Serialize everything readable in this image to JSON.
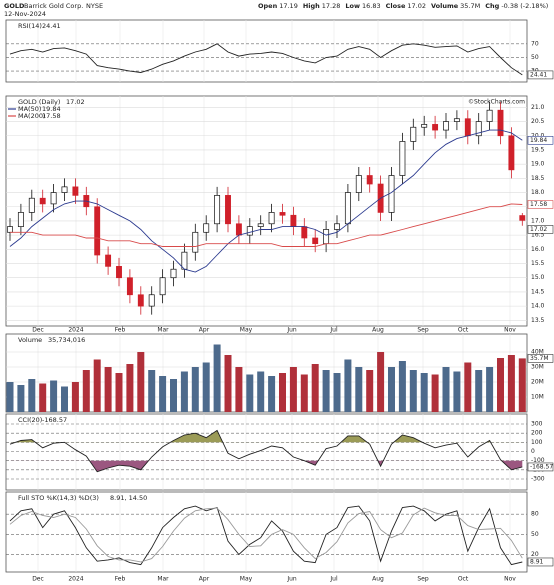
{
  "header": {
    "symbol": "GOLD",
    "name": "Barrick Gold Corp.",
    "exchange": "NYSE",
    "date": "12-Nov-2024",
    "quote": [
      {
        "label": "Open",
        "value": 17.19
      },
      {
        "label": "High",
        "value": 17.28
      },
      {
        "label": "Low",
        "value": 16.83
      },
      {
        "label": "Close",
        "value": 17.02
      },
      {
        "label": "Volume",
        "value": 35700000,
        "value_label": "35.7M"
      },
      {
        "label": "Chg",
        "value": -0.38,
        "value_label": "-0.38 (-2.18%)"
      }
    ]
  },
  "watermark": "©StockCharts.com",
  "months": [
    "Dec",
    "2024",
    "Feb",
    "Mar",
    "Apr",
    "May",
    "Jun",
    "Jul",
    "Aug",
    "Sep",
    "Oct",
    "Nov"
  ],
  "chart_data": [
    {
      "type": "line",
      "title": "RSI(14)",
      "ylim": [
        14,
        105
      ],
      "yticks": [
        30,
        50,
        70
      ],
      "series": [
        {
          "name": "RSI(14)",
          "color": "#222222",
          "values": [
            55,
            60,
            62,
            58,
            63,
            64,
            60,
            55,
            38,
            35,
            33,
            30,
            28,
            33,
            40,
            45,
            52,
            58,
            62,
            70,
            58,
            52,
            55,
            56,
            58,
            56,
            50,
            45,
            42,
            50,
            52,
            62,
            66,
            62,
            50,
            60,
            68,
            70,
            68,
            65,
            66,
            67,
            58,
            63,
            66,
            50,
            35,
            24.41
          ]
        }
      ]
    },
    {
      "type": "candlestick",
      "title": "GOLD (Daily)",
      "ylim": [
        13.3,
        21.4
      ],
      "grid": true,
      "up_color": "#111111",
      "down_color": "#d0202a",
      "yticks": [
        {
          "value": 13.5,
          "label": "13.5"
        },
        {
          "value": 14,
          "label": "14.0"
        },
        {
          "value": 14.5,
          "label": "14.5"
        },
        {
          "value": 15,
          "label": "15.0"
        },
        {
          "value": 15.5,
          "label": "15.5"
        },
        {
          "value": 16,
          "label": "16.0"
        },
        {
          "value": 16.5,
          "label": "16.5"
        },
        {
          "value": 17,
          "label": "17.0"
        },
        {
          "value": 17.5,
          "label": "17.5"
        },
        {
          "value": 18,
          "label": "18.0"
        },
        {
          "value": 18.5,
          "label": "18.5"
        },
        {
          "value": 19,
          "label": "19.0"
        },
        {
          "value": 19.5,
          "label": "19.5"
        },
        {
          "value": 20,
          "label": "20.0"
        },
        {
          "value": 20.5,
          "label": "20.5"
        },
        {
          "value": 21,
          "label": "21.0"
        }
      ],
      "open": [
        16.6,
        16.8,
        17.3,
        17.8,
        17.6,
        18.0,
        18.2,
        17.9,
        17.5,
        15.8,
        15.4,
        15.0,
        14.4,
        14.0,
        14.4,
        15.0,
        15.3,
        15.9,
        16.6,
        16.9,
        17.9,
        16.9,
        16.5,
        16.8,
        16.9,
        17.3,
        17.2,
        16.8,
        16.4,
        16.2,
        16.7,
        16.9,
        18.0,
        18.6,
        18.3,
        17.3,
        18.6,
        19.8,
        20.3,
        20.4,
        20.2,
        20.5,
        20.6,
        20.0,
        20.5,
        20.9,
        20.0,
        17.19
      ],
      "high": [
        17.1,
        17.6,
        18.1,
        18.1,
        18.3,
        18.5,
        18.5,
        18.2,
        17.8,
        16.1,
        15.7,
        15.3,
        14.7,
        14.7,
        15.3,
        15.6,
        16.2,
        16.9,
        17.2,
        18.2,
        18.2,
        17.2,
        17.1,
        17.2,
        17.6,
        17.6,
        17.5,
        17.1,
        16.7,
        17.0,
        17.2,
        18.3,
        18.9,
        18.9,
        18.6,
        18.9,
        20.1,
        20.6,
        20.7,
        20.7,
        20.8,
        20.9,
        20.9,
        20.8,
        21.2,
        21.2,
        20.3,
        17.28
      ],
      "low": [
        16.3,
        16.5,
        17.0,
        17.3,
        17.3,
        17.7,
        17.6,
        17.2,
        15.5,
        15.1,
        14.7,
        14.1,
        13.7,
        13.7,
        14.1,
        14.7,
        15.0,
        15.6,
        16.3,
        16.6,
        16.6,
        16.2,
        16.2,
        16.5,
        16.6,
        16.9,
        16.5,
        16.1,
        15.9,
        15.9,
        16.4,
        16.6,
        17.7,
        18.0,
        17.0,
        17.0,
        18.3,
        19.5,
        20.0,
        19.9,
        19.9,
        20.2,
        19.7,
        19.7,
        20.2,
        19.7,
        18.5,
        16.83
      ],
      "close": [
        16.8,
        17.3,
        17.8,
        17.6,
        18.0,
        18.2,
        17.9,
        17.5,
        15.8,
        15.4,
        15.0,
        14.4,
        14.0,
        14.4,
        15.0,
        15.3,
        15.9,
        16.6,
        16.9,
        17.9,
        16.9,
        16.5,
        16.8,
        16.9,
        17.3,
        17.2,
        16.8,
        16.4,
        16.2,
        16.7,
        16.9,
        18.0,
        18.6,
        18.3,
        17.3,
        18.6,
        19.8,
        20.3,
        20.4,
        20.2,
        20.5,
        20.6,
        20.0,
        20.5,
        20.9,
        20.0,
        18.8,
        17.02
      ],
      "series": [
        {
          "name": "MA(50)",
          "color": "#2b3a8f",
          "values": [
            16.1,
            16.4,
            16.8,
            17.1,
            17.4,
            17.6,
            17.7,
            17.7,
            17.6,
            17.4,
            17.2,
            17.0,
            16.7,
            16.3,
            16.0,
            15.7,
            15.3,
            15.2,
            15.4,
            15.8,
            16.2,
            16.5,
            16.6,
            16.7,
            16.7,
            16.8,
            16.8,
            16.8,
            16.7,
            16.5,
            16.6,
            16.9,
            17.2,
            17.5,
            17.8,
            18.0,
            18.3,
            18.6,
            19.0,
            19.4,
            19.7,
            19.9,
            20.0,
            20.1,
            20.2,
            20.2,
            20.1,
            19.84
          ]
        },
        {
          "name": "MA(200)",
          "color": "#d84a4a",
          "values": [
            16.6,
            16.6,
            16.6,
            16.5,
            16.5,
            16.5,
            16.5,
            16.4,
            16.4,
            16.3,
            16.3,
            16.3,
            16.2,
            16.2,
            16.1,
            16.1,
            16.1,
            16.1,
            16.2,
            16.2,
            16.2,
            16.2,
            16.2,
            16.2,
            16.2,
            16.1,
            16.1,
            16.1,
            16.1,
            16.2,
            16.2,
            16.3,
            16.4,
            16.5,
            16.5,
            16.6,
            16.7,
            16.8,
            16.9,
            17.0,
            17.1,
            17.2,
            17.3,
            17.4,
            17.5,
            17.5,
            17.6,
            17.58
          ]
        }
      ]
    },
    {
      "type": "bar",
      "title": "Volume",
      "last_label": "35,734,016",
      "ylim": [
        0,
        52000000
      ],
      "up_color": "#4d6a8c",
      "down_color": "#b0303a",
      "yticks": [
        {
          "value": 10000000,
          "label": "10M"
        },
        {
          "value": 20000000,
          "label": "20M"
        },
        {
          "value": 30000000,
          "label": "30M"
        },
        {
          "value": 40000000,
          "label": "40M"
        }
      ],
      "values": [
        20000000,
        18000000,
        22000000,
        19000000,
        21000000,
        17000000,
        20000000,
        28000000,
        35000000,
        30000000,
        26000000,
        32000000,
        40000000,
        28000000,
        24000000,
        22000000,
        27000000,
        30000000,
        33000000,
        45000000,
        38000000,
        30000000,
        25000000,
        27000000,
        24000000,
        26000000,
        30000000,
        25000000,
        32000000,
        28000000,
        26000000,
        35000000,
        30000000,
        28000000,
        40000000,
        30000000,
        34000000,
        28000000,
        26000000,
        25000000,
        30000000,
        27000000,
        33000000,
        28000000,
        30000000,
        36000000,
        38000000,
        35734016
      ]
    },
    {
      "type": "line",
      "title": "CCI(20)",
      "ylim": [
        -420,
        409
      ],
      "yticks": [
        -300,
        -200,
        -100,
        0,
        100,
        200,
        300
      ],
      "band": [
        -100,
        100
      ],
      "fill_up": "#8a8a3a",
      "fill_down": "#8a3a6a",
      "series": [
        {
          "name": "CCI(20)",
          "color": "#222222",
          "values": [
            80,
            120,
            130,
            40,
            90,
            100,
            20,
            -50,
            -220,
            -180,
            -150,
            -160,
            -200,
            -60,
            50,
            120,
            180,
            200,
            150,
            230,
            -20,
            -80,
            -30,
            10,
            60,
            40,
            -60,
            -100,
            -150,
            30,
            60,
            170,
            170,
            80,
            -160,
            80,
            180,
            150,
            90,
            40,
            70,
            90,
            -60,
            50,
            120,
            -90,
            -200,
            -168.57
          ]
        }
      ]
    },
    {
      "type": "line",
      "title": "Full STO %K(14,3) %D(3)",
      "last_label": "8.91, 14.50",
      "ylim": [
        -6,
        113
      ],
      "yticks": [
        20,
        50,
        80
      ],
      "series": [
        {
          "name": "%K",
          "color": "#222222",
          "values": [
            70,
            85,
            88,
            60,
            80,
            85,
            60,
            30,
            10,
            12,
            15,
            8,
            5,
            30,
            60,
            75,
            88,
            92,
            85,
            90,
            40,
            20,
            35,
            45,
            70,
            55,
            25,
            10,
            8,
            50,
            60,
            90,
            92,
            70,
            10,
            55,
            90,
            92,
            85,
            70,
            80,
            85,
            25,
            60,
            88,
            30,
            5,
            8.91
          ]
        },
        {
          "name": "%D",
          "color": "#9a9a9a",
          "values": [
            65,
            78,
            84,
            78,
            75,
            80,
            75,
            58,
            33,
            17,
            12,
            12,
            9,
            14,
            32,
            55,
            74,
            85,
            88,
            89,
            72,
            50,
            32,
            33,
            50,
            57,
            50,
            30,
            14,
            23,
            39,
            67,
            81,
            84,
            57,
            45,
            52,
            79,
            89,
            82,
            78,
            78,
            63,
            57,
            58,
            59,
            41,
            14.5
          ]
        }
      ]
    }
  ]
}
